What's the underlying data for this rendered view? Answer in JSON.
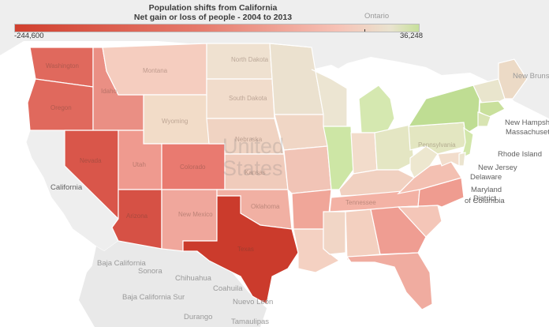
{
  "title": {
    "line1": "Population shifts from California",
    "line2": "Net gain or loss of people - 2004 to 2013"
  },
  "legend": {
    "min_label": "-244,600",
    "max_label": "36,248",
    "scale_min": -244600,
    "scale_max": 36248,
    "colors": {
      "low": "#d1402f",
      "mid": "#f6c2b6",
      "neutral": "#e9e3cf",
      "high": "#c7e09b"
    }
  },
  "map_labels": {
    "ontario": "Ontario",
    "country_line1": "United",
    "country_line2": "States",
    "california": "California",
    "baja_california": "Baja California",
    "baja_california_sur": "Baja California Sur",
    "sonora": "Sonora",
    "chihuahua": "Chihuahua",
    "coahuila": "Coahuila",
    "nuevo_leon": "Nuevo León",
    "durango": "Durango",
    "tamaulipas": "Tamaulipas",
    "new_brunswick": "New Brunswick",
    "new_hampshire": "New Hampshire",
    "massachusetts": "Massachusetts",
    "rhode_island": "Rhode Island",
    "new_jersey": "New Jersey",
    "delaware": "Delaware",
    "maryland": "Maryland",
    "district_line1": "District",
    "district_line2": "of Columbia"
  },
  "state_labels": {
    "washington": "Washington",
    "oregon": "Oregon",
    "idaho": "Idaho",
    "montana": "Montana",
    "wyoming": "Wyoming",
    "nevada": "Nevada",
    "utah": "Utah",
    "colorado": "Colorado",
    "arizona": "Arizona",
    "new_mexico": "New Mexico",
    "north_dakota": "North Dakota",
    "south_dakota": "South Dakota",
    "nebraska": "Nebraska",
    "kansas": "Kansas",
    "oklahoma": "Oklahoma",
    "texas": "Texas",
    "tennessee": "Tennessee",
    "pennsylvania": "Pennsylvania"
  },
  "state_colors": {
    "washington": "#e0695d",
    "oregon": "#e0695d",
    "california": "#efefef",
    "nevada": "#d9564a",
    "idaho": "#ea8f84",
    "montana": "#f5cdbf",
    "wyoming": "#f2dcc8",
    "utah": "#ef9a8f",
    "colorado": "#e97a70",
    "arizona": "#d65145",
    "new_mexico": "#f0a79c",
    "north_dakota": "#efe1d0",
    "south_dakota": "#f1dccb",
    "nebraska": "#f0d3c2",
    "kansas": "#f0cbbb",
    "oklahoma": "#f1b0a3",
    "texas": "#cb3b2c",
    "minnesota": "#ebe1cf",
    "iowa": "#f0d6c5",
    "missouri": "#f1c4b6",
    "arkansas": "#f0a699",
    "louisiana": "#f4d1c2",
    "wisconsin": "#ece5d2",
    "illinois": "#cde6a5",
    "michigan": "#d5e8b0",
    "indiana": "#f2dccb",
    "ohio": "#e4e6c3",
    "kentucky": "#f1d1c1",
    "tennessee": "#f3b2a5",
    "mississippi": "#f1d6c6",
    "alabama": "#f3d0c0",
    "georgia": "#ef9d92",
    "florida": "#f0aca0",
    "south_carolina": "#f4c6b8",
    "north_carolina": "#ef9c90",
    "virginia": "#f3c0b2",
    "west_virginia": "#ede7cf",
    "pennsylvania": "#e3e6c1",
    "new_york": "#bfdd93",
    "new_jersey": "#d2e6aa",
    "maryland": "#f2ddcc",
    "delaware": "#ebe4cf",
    "new_england": "#e9e5cd",
    "maine": "#ecdac6",
    "connecticut": "#d8e4b2",
    "massachusetts": "#c9e09c"
  }
}
